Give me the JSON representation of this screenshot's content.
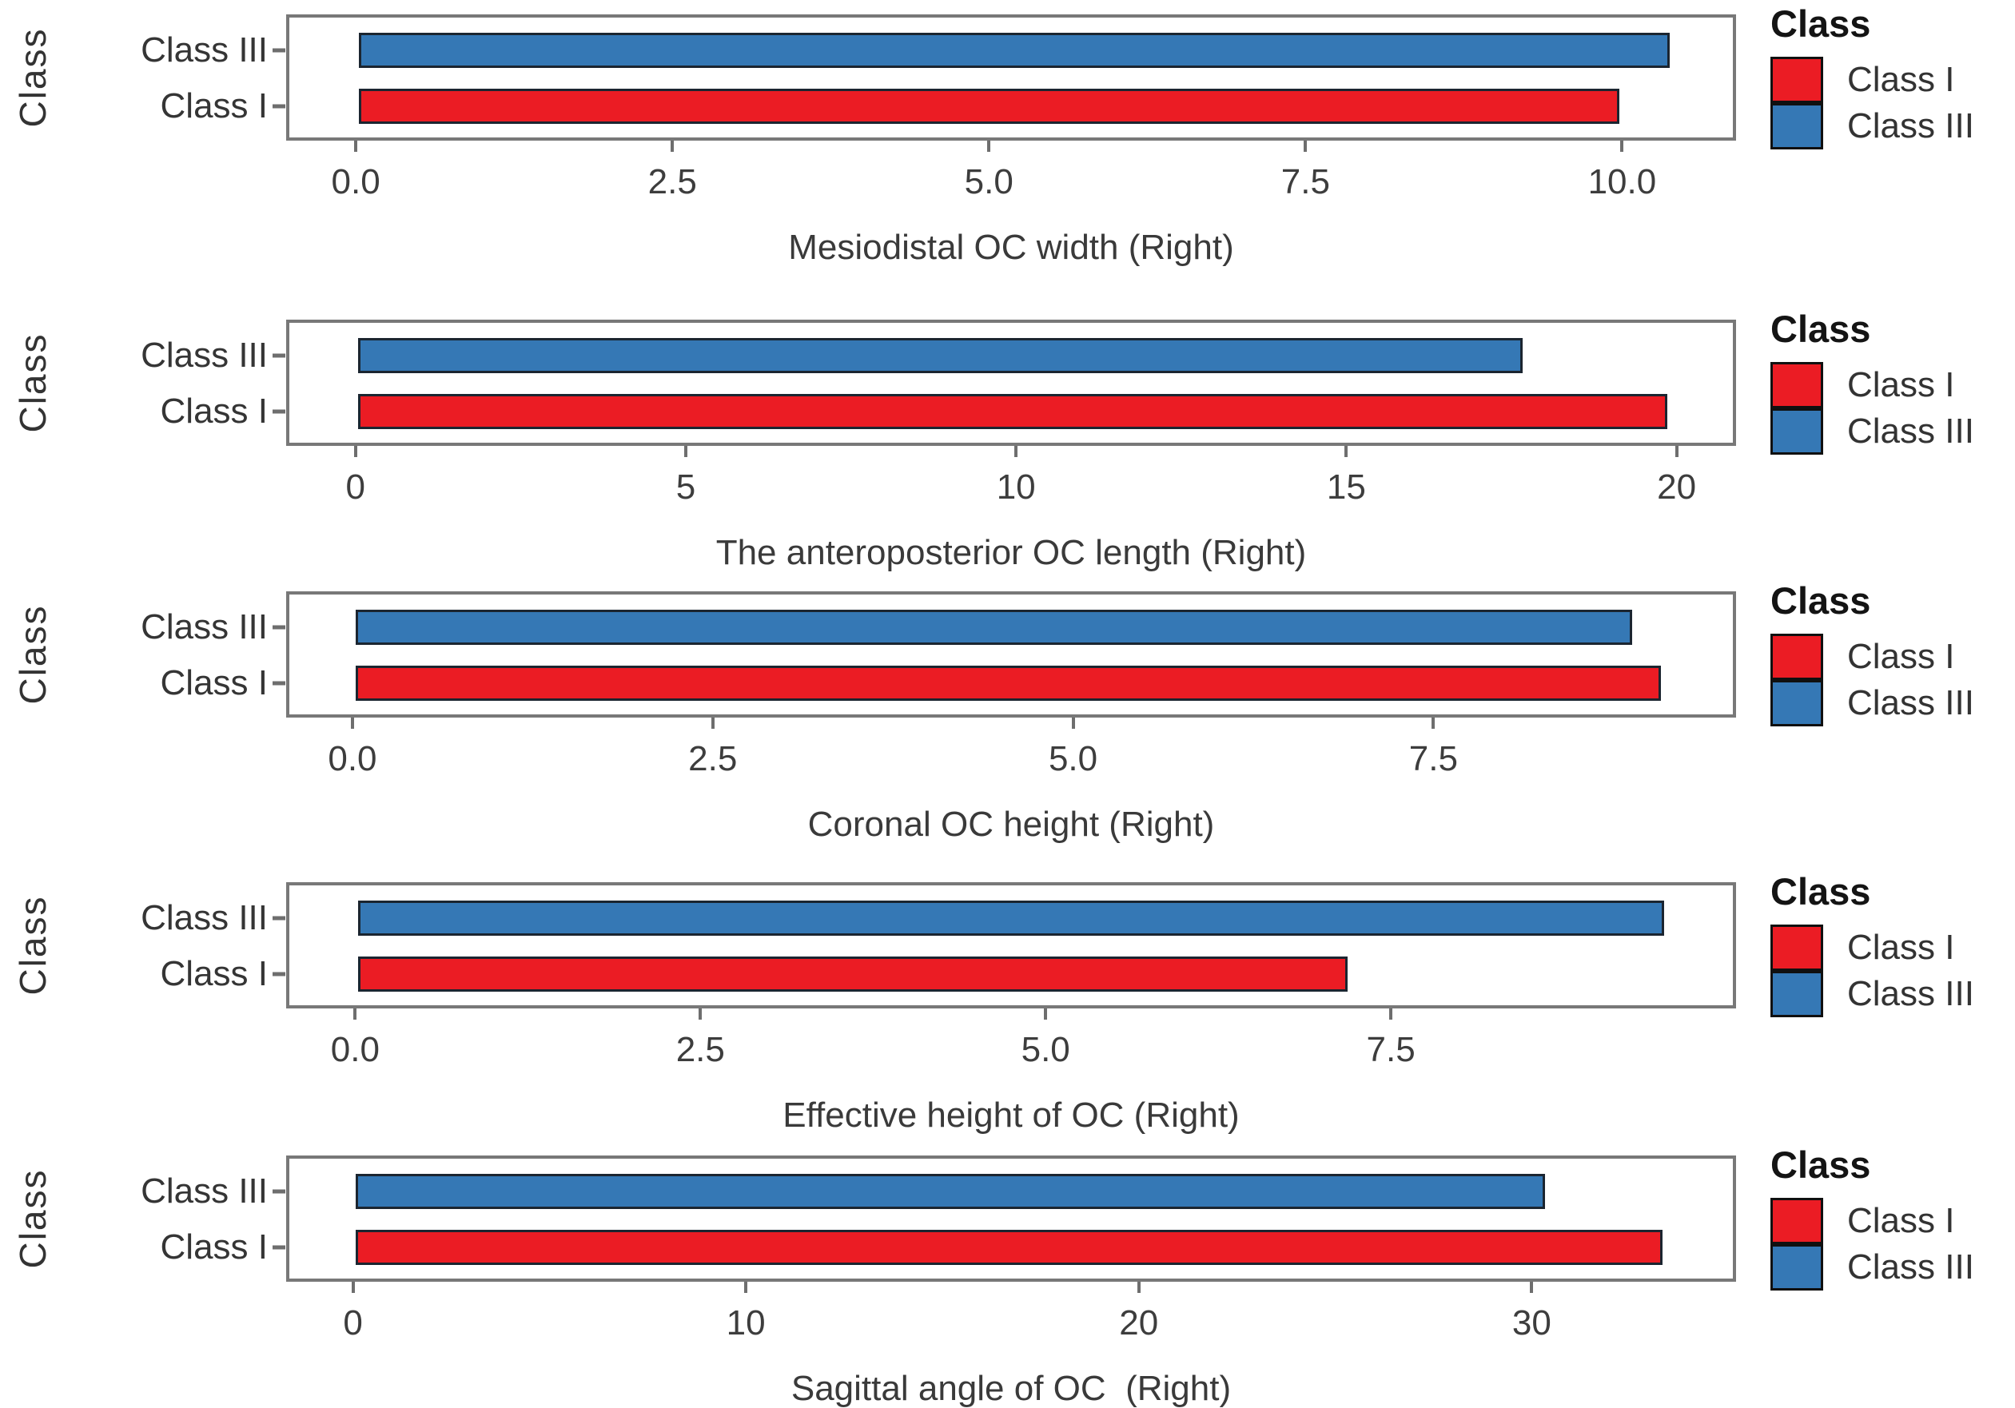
{
  "figure": {
    "background": "#ffffff",
    "y_axis_title": "Class",
    "categories_top_to_bottom": [
      "Class III",
      "Class I"
    ]
  },
  "colors": {
    "class_i_red": "#EB1C24",
    "class_iii_blue": "#3578B5",
    "bar_border": "#1B2530",
    "panel_border": "#787878",
    "tick_mark": "#6E6E6E",
    "axis_text": "#3A3A3A"
  },
  "legend": {
    "title": "Class",
    "items": [
      {
        "label": "Class I",
        "color": "#EB1C24"
      },
      {
        "label": "Class III",
        "color": "#3578B5"
      }
    ]
  },
  "chart_data": [
    {
      "type": "bar",
      "orientation": "horizontal",
      "title": "Mesiodistal OC width (Right)",
      "xlabel": "Mesiodistal OC width (Right)",
      "ylabel": "Class",
      "categories": [
        "Class III",
        "Class I"
      ],
      "series": [
        {
          "name": "Class III",
          "value": 10.4,
          "color": "#3578B5"
        },
        {
          "name": "Class I",
          "value": 10.0,
          "color": "#EB1C24"
        }
      ],
      "xlim": [
        -0.55,
        10.9
      ],
      "xticks": [
        {
          "value": 0,
          "label": "0.0"
        },
        {
          "value": 2.5,
          "label": "2.5"
        },
        {
          "value": 5,
          "label": "5.0"
        },
        {
          "value": 7.5,
          "label": "7.5"
        },
        {
          "value": 10,
          "label": "10.0"
        }
      ],
      "grid": false,
      "legend_position": "right",
      "legend_title": "Class"
    },
    {
      "type": "bar",
      "orientation": "horizontal",
      "title": "The anteroposterior OC length (Right)",
      "xlabel": "The anteroposterior OC length (Right)",
      "ylabel": "Class",
      "categories": [
        "Class III",
        "Class I"
      ],
      "series": [
        {
          "name": "Class III",
          "value": 17.7,
          "color": "#3578B5"
        },
        {
          "name": "Class I",
          "value": 19.9,
          "color": "#EB1C24"
        }
      ],
      "xlim": [
        -1.05,
        20.9
      ],
      "xticks": [
        {
          "value": 0,
          "label": "0"
        },
        {
          "value": 5,
          "label": "5"
        },
        {
          "value": 10,
          "label": "10"
        },
        {
          "value": 15,
          "label": "15"
        },
        {
          "value": 20,
          "label": "20"
        }
      ],
      "grid": false,
      "legend_position": "right",
      "legend_title": "Class"
    },
    {
      "type": "bar",
      "orientation": "horizontal",
      "title": "Coronal OC height (Right)",
      "xlabel": "Coronal OC height (Right)",
      "ylabel": "Class",
      "categories": [
        "Class III",
        "Class I"
      ],
      "series": [
        {
          "name": "Class III",
          "value": 8.9,
          "color": "#3578B5"
        },
        {
          "name": "Class I",
          "value": 9.1,
          "color": "#EB1C24"
        }
      ],
      "xlim": [
        -0.46,
        9.6
      ],
      "xticks": [
        {
          "value": 0,
          "label": "0.0"
        },
        {
          "value": 2.5,
          "label": "2.5"
        },
        {
          "value": 5,
          "label": "5.0"
        },
        {
          "value": 7.5,
          "label": "7.5"
        }
      ],
      "grid": false,
      "legend_position": "right",
      "legend_title": "Class"
    },
    {
      "type": "bar",
      "orientation": "horizontal",
      "title": "Effective height of OC (Right)",
      "xlabel": "Effective height of OC (Right)",
      "ylabel": "Class",
      "categories": [
        "Class III",
        "Class I"
      ],
      "series": [
        {
          "name": "Class III",
          "value": 9.5,
          "color": "#3578B5"
        },
        {
          "name": "Class I",
          "value": 7.2,
          "color": "#EB1C24"
        }
      ],
      "xlim": [
        -0.5,
        10.0
      ],
      "xticks": [
        {
          "value": 0,
          "label": "0.0"
        },
        {
          "value": 2.5,
          "label": "2.5"
        },
        {
          "value": 5,
          "label": "5.0"
        },
        {
          "value": 7.5,
          "label": "7.5"
        }
      ],
      "grid": false,
      "legend_position": "right",
      "legend_title": "Class"
    },
    {
      "type": "bar",
      "orientation": "horizontal",
      "title": "Sagittal angle of OC  (Right)",
      "xlabel": "Sagittal angle of OC  (Right)",
      "ylabel": "Class",
      "categories": [
        "Class III",
        "Class I"
      ],
      "series": [
        {
          "name": "Class III",
          "value": 30.4,
          "color": "#3578B5"
        },
        {
          "name": "Class I",
          "value": 33.4,
          "color": "#EB1C24"
        }
      ],
      "xlim": [
        -1.7,
        35.2
      ],
      "xticks": [
        {
          "value": 0,
          "label": "0"
        },
        {
          "value": 10,
          "label": "10"
        },
        {
          "value": 20,
          "label": "20"
        },
        {
          "value": 30,
          "label": "30"
        }
      ],
      "grid": false,
      "legend_position": "right",
      "legend_title": "Class"
    }
  ]
}
